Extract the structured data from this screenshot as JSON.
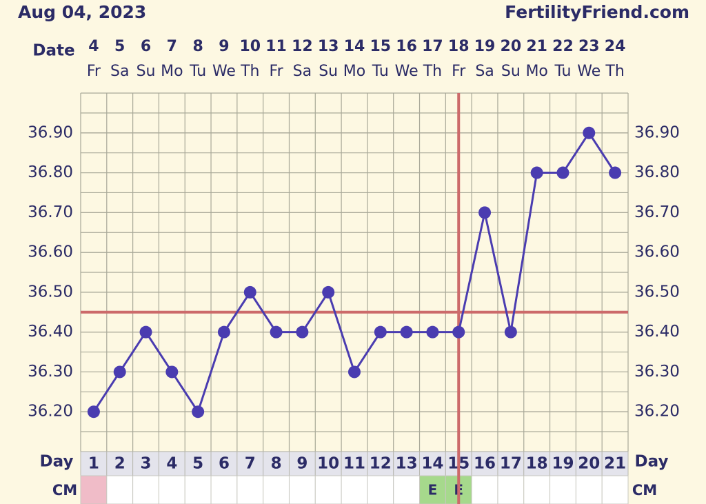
{
  "header": {
    "date": "Aug 04, 2023",
    "site": "FertilityFriend.com"
  },
  "chart_data": {
    "type": "line",
    "date_label": "Date",
    "day_label": "Day",
    "cm_label": "CM",
    "categories": [
      "4",
      "5",
      "6",
      "7",
      "8",
      "9",
      "10",
      "11",
      "12",
      "13",
      "14",
      "15",
      "16",
      "17",
      "18",
      "19",
      "20",
      "21",
      "22",
      "23",
      "24"
    ],
    "weekdays": [
      "Fr",
      "Sa",
      "Su",
      "Mo",
      "Tu",
      "We",
      "Th",
      "Fr",
      "Sa",
      "Su",
      "Mo",
      "Tu",
      "We",
      "Th",
      "Fr",
      "Sa",
      "Su",
      "Mo",
      "Tu",
      "We",
      "Th"
    ],
    "cycle_days": [
      1,
      2,
      3,
      4,
      5,
      6,
      7,
      8,
      9,
      10,
      11,
      12,
      13,
      14,
      15,
      16,
      17,
      18,
      19,
      20,
      21
    ],
    "cm": [
      null,
      null,
      null,
      null,
      null,
      null,
      null,
      null,
      null,
      null,
      null,
      null,
      null,
      "E",
      "E",
      null,
      null,
      null,
      null,
      null,
      null
    ],
    "values": [
      36.2,
      36.3,
      36.4,
      36.3,
      36.2,
      36.4,
      36.5,
      36.4,
      36.4,
      36.5,
      36.3,
      36.4,
      36.4,
      36.4,
      36.4,
      36.7,
      36.4,
      36.8,
      36.8,
      36.9,
      36.8
    ],
    "color": "#4a3cb0",
    "coverline": 36.45,
    "coverline_color": "#cc6a6a",
    "ovulation_day": 15,
    "ylim": [
      36.1,
      37.0
    ],
    "yticks": [
      {
        "value": 36.2,
        "label": "36.20"
      },
      {
        "value": 36.3,
        "label": "36.30"
      },
      {
        "value": 36.4,
        "label": "36.40"
      },
      {
        "value": 36.5,
        "label": "36.50"
      },
      {
        "value": 36.6,
        "label": "36.60"
      },
      {
        "value": 36.7,
        "label": "36.70"
      },
      {
        "value": 36.8,
        "label": "36.80"
      },
      {
        "value": 36.9,
        "label": "36.90"
      }
    ],
    "grid": true
  }
}
